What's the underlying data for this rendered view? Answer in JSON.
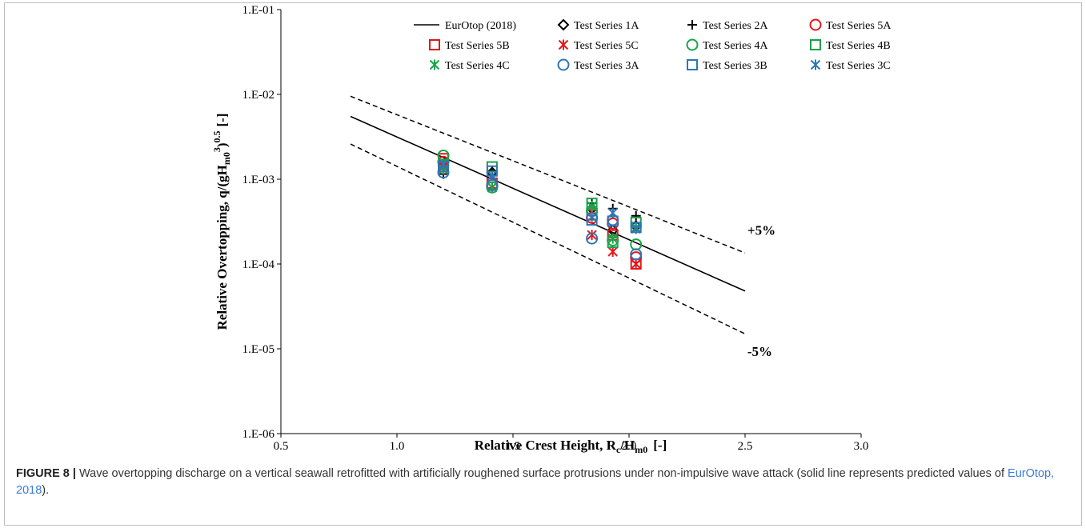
{
  "chart_data": {
    "type": "scatter",
    "x_axis": {
      "label_main": "Relative Crest Height, R",
      "label_sub_c": "c",
      "label_slash": "/H",
      "label_sub_m0": "m0",
      "label_unit": "[-]",
      "range": [
        0.5,
        3.0
      ],
      "ticks": [
        0.5,
        1.0,
        1.5,
        2.0,
        2.5,
        3.0
      ],
      "tick_labels": [
        "0.5",
        "1.0",
        "1.5",
        "2.0",
        "2.5",
        "3.0"
      ]
    },
    "y_axis": {
      "label_a": "Relative Overtopping, q/(gH",
      "label_sub": "m0",
      "label_sup3": "3",
      "label_b": ")",
      "label_sup05": "0.5",
      "label_unit": "[-]",
      "scale": "log",
      "range": [
        1e-06,
        0.1
      ],
      "ticks": [
        1e-06,
        1e-05,
        0.0001,
        0.001,
        0.01,
        0.1
      ],
      "tick_labels": [
        "1.E-06",
        "1.E-05",
        "1.E-04",
        "1.E-03",
        "1.E-02",
        "1.E-01"
      ]
    },
    "grid": false,
    "legend_placement": "top-right",
    "lines": [
      {
        "name": "EurOtop (2018)",
        "style": "solid",
        "x": [
          0.8,
          2.5
        ],
        "y": [
          0.0055,
          4.8e-05
        ]
      },
      {
        "style": "dashed",
        "x": [
          0.8,
          2.5
        ],
        "y": [
          0.0095,
          0.000135
        ]
      },
      {
        "style": "dashed",
        "x": [
          0.8,
          2.5
        ],
        "y": [
          0.0026,
          1.5e-05
        ]
      }
    ],
    "annotations": [
      {
        "text": "+5%",
        "x": 2.51,
        "y": 0.00022
      },
      {
        "text": "-5%",
        "x": 2.51,
        "y": 8.2e-06
      }
    ],
    "series": [
      {
        "name": "Test Series 1A",
        "marker": "diamond",
        "color": "#000000",
        "points": [
          [
            1.2,
            0.00145
          ],
          [
            1.41,
            0.0012
          ],
          [
            1.84,
            0.00045
          ],
          [
            1.93,
            0.00025
          ],
          [
            2.03,
            0.00028
          ]
        ]
      },
      {
        "name": "Test Series 2A",
        "marker": "plus",
        "color": "#000000",
        "points": [
          [
            1.2,
            0.00115
          ],
          [
            1.41,
            0.00125
          ],
          [
            1.84,
            0.00052
          ],
          [
            1.93,
            0.00045
          ],
          [
            2.03,
            0.00037
          ]
        ]
      },
      {
        "name": "Test Series 5A",
        "marker": "circle",
        "color": "#e3171b",
        "points": [
          [
            1.2,
            0.0016
          ],
          [
            1.41,
            0.00085
          ],
          [
            1.84,
            0.00035
          ],
          [
            1.93,
            0.0003
          ],
          [
            2.03,
            0.00012
          ]
        ]
      },
      {
        "name": "Test Series 5B",
        "marker": "square",
        "color": "#e3171b",
        "points": [
          [
            1.2,
            0.00175
          ],
          [
            1.41,
            0.0009
          ],
          [
            1.84,
            0.00038
          ],
          [
            1.93,
            0.00022
          ],
          [
            2.03,
            0.0001
          ]
        ]
      },
      {
        "name": "Test Series 5C",
        "marker": "asterisk",
        "color": "#e3171b",
        "points": [
          [
            1.2,
            0.0014
          ],
          [
            1.41,
            0.0008
          ],
          [
            1.84,
            0.00022
          ],
          [
            1.93,
            0.00014
          ],
          [
            2.03,
            0.0001
          ]
        ]
      },
      {
        "name": "Test Series 4A",
        "marker": "circle",
        "color": "#1aa34a",
        "points": [
          [
            1.2,
            0.0019
          ],
          [
            1.41,
            0.0008
          ],
          [
            1.84,
            0.00042
          ],
          [
            1.93,
            0.00019
          ],
          [
            2.03,
            0.00017
          ]
        ]
      },
      {
        "name": "Test Series 4B",
        "marker": "square",
        "color": "#1aa34a",
        "points": [
          [
            1.2,
            0.0015
          ],
          [
            1.41,
            0.0014
          ],
          [
            1.84,
            0.00052
          ],
          [
            1.93,
            0.00018
          ],
          [
            2.03,
            0.00031
          ]
        ]
      },
      {
        "name": "Test Series 4C",
        "marker": "asterisk",
        "color": "#1aa34a",
        "points": [
          [
            1.2,
            0.0013
          ],
          [
            1.41,
            0.0008
          ],
          [
            1.84,
            0.00048
          ],
          [
            1.93,
            0.0002
          ],
          [
            2.03,
            0.00027
          ]
        ]
      },
      {
        "name": "Test Series 3A",
        "marker": "circle",
        "color": "#2f75b5",
        "points": [
          [
            1.2,
            0.0012
          ],
          [
            1.41,
            0.00085
          ],
          [
            1.84,
            0.0002
          ],
          [
            1.93,
            0.00033
          ],
          [
            2.03,
            0.00013
          ]
        ]
      },
      {
        "name": "Test Series 3B",
        "marker": "square",
        "color": "#2f75b5",
        "points": [
          [
            1.2,
            0.0014
          ],
          [
            1.41,
            0.00125
          ],
          [
            1.84,
            0.00033
          ],
          [
            1.93,
            0.00032
          ],
          [
            2.03,
            0.00027
          ]
        ]
      },
      {
        "name": "Test Series 3C",
        "marker": "asterisk",
        "color": "#2f75b5",
        "points": [
          [
            1.2,
            0.0015
          ],
          [
            1.41,
            0.0011
          ],
          [
            1.84,
            0.00036
          ],
          [
            1.93,
            0.0004
          ],
          [
            2.03,
            0.00026
          ]
        ]
      }
    ]
  },
  "caption": {
    "label": "FIGURE 8 |",
    "text_before": " Wave overtopping discharge on a vertical seawall retrofitted with artificially roughened surface protrusions under non-impulsive wave attack (solid line represents predicted values of ",
    "cite": "EurOtop, 2018",
    "text_after": ")."
  }
}
